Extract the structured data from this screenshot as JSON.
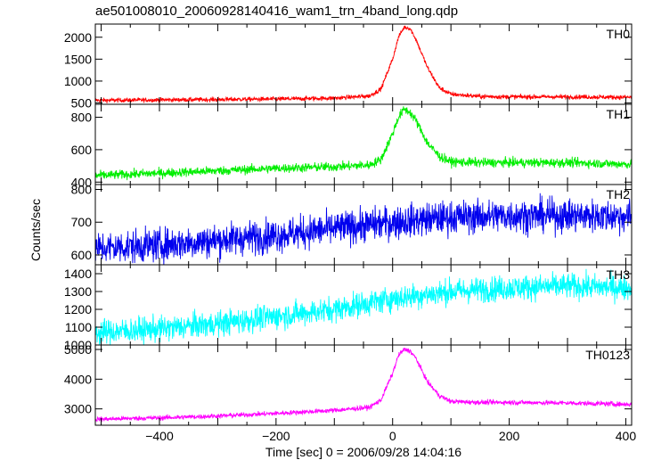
{
  "chart_data": {
    "type": "line",
    "title": "ae501008010_20060928140416_wam1_trn_4band_long.qdp",
    "xlabel": "Time [sec] 0 = 2006/09/28 14:04:16",
    "ylabel": "Counts/sec",
    "xlim": [
      -510,
      410
    ],
    "x_ticks": [
      -400,
      -200,
      0,
      200,
      400
    ],
    "x_tick_labels": [
      "−400",
      "−200",
      "0",
      "200",
      "400"
    ],
    "panels": [
      {
        "label": "TH0",
        "color": "#ff0000",
        "ylim": [
          470,
          2300
        ],
        "y_ticks": [
          500,
          1000,
          1500,
          2000
        ],
        "series": {
          "x": [
            -510,
            -400,
            -300,
            -200,
            -100,
            -40,
            -20,
            0,
            10,
            20,
            30,
            40,
            60,
            80,
            100,
            150,
            200,
            300,
            410
          ],
          "values": [
            560,
            570,
            580,
            590,
            610,
            660,
            820,
            1500,
            2000,
            2230,
            2200,
            1950,
            1300,
            850,
            700,
            650,
            640,
            640,
            630
          ]
        },
        "noise": 25
      },
      {
        "label": "TH1",
        "color": "#00ee00",
        "ylim": [
          385,
          880
        ],
        "y_ticks": [
          400,
          600,
          800
        ],
        "series": {
          "x": [
            -510,
            -400,
            -300,
            -200,
            -100,
            -40,
            -20,
            0,
            10,
            20,
            30,
            40,
            60,
            80,
            100,
            150,
            200,
            300,
            410
          ],
          "values": [
            440,
            455,
            470,
            485,
            495,
            505,
            540,
            700,
            800,
            850,
            830,
            780,
            640,
            560,
            525,
            520,
            520,
            520,
            510
          ]
        },
        "noise": 14
      },
      {
        "label": "TH2",
        "color": "#0000ee",
        "ylim": [
          570,
          815
        ],
        "y_ticks": [
          600,
          700,
          800
        ],
        "series": {
          "x": [
            -510,
            -400,
            -300,
            -200,
            -100,
            0,
            100,
            200,
            300,
            410
          ],
          "values": [
            620,
            630,
            645,
            660,
            680,
            700,
            715,
            720,
            720,
            718
          ]
        },
        "noise": 25
      },
      {
        "label": "TH3",
        "color": "#00ffff",
        "ylim": [
          1000,
          1450
        ],
        "y_ticks": [
          1000,
          1100,
          1200,
          1300,
          1400
        ],
        "series": {
          "x": [
            -510,
            -400,
            -300,
            -200,
            -100,
            0,
            100,
            200,
            300,
            410
          ],
          "values": [
            1070,
            1090,
            1120,
            1160,
            1200,
            1260,
            1300,
            1320,
            1330,
            1320
          ]
        },
        "noise": 35
      },
      {
        "label": "TH0123",
        "color": "#ff00ff",
        "ylim": [
          2450,
          5150
        ],
        "y_ticks": [
          3000,
          4000,
          5000
        ],
        "series": {
          "x": [
            -510,
            -400,
            -300,
            -200,
            -100,
            -40,
            -20,
            0,
            10,
            20,
            30,
            40,
            60,
            80,
            100,
            150,
            200,
            300,
            410
          ],
          "values": [
            2650,
            2700,
            2760,
            2850,
            2950,
            3050,
            3300,
            4200,
            4800,
            5000,
            4950,
            4700,
            3900,
            3450,
            3250,
            3220,
            3220,
            3200,
            3150
          ]
        },
        "noise": 40
      }
    ]
  }
}
